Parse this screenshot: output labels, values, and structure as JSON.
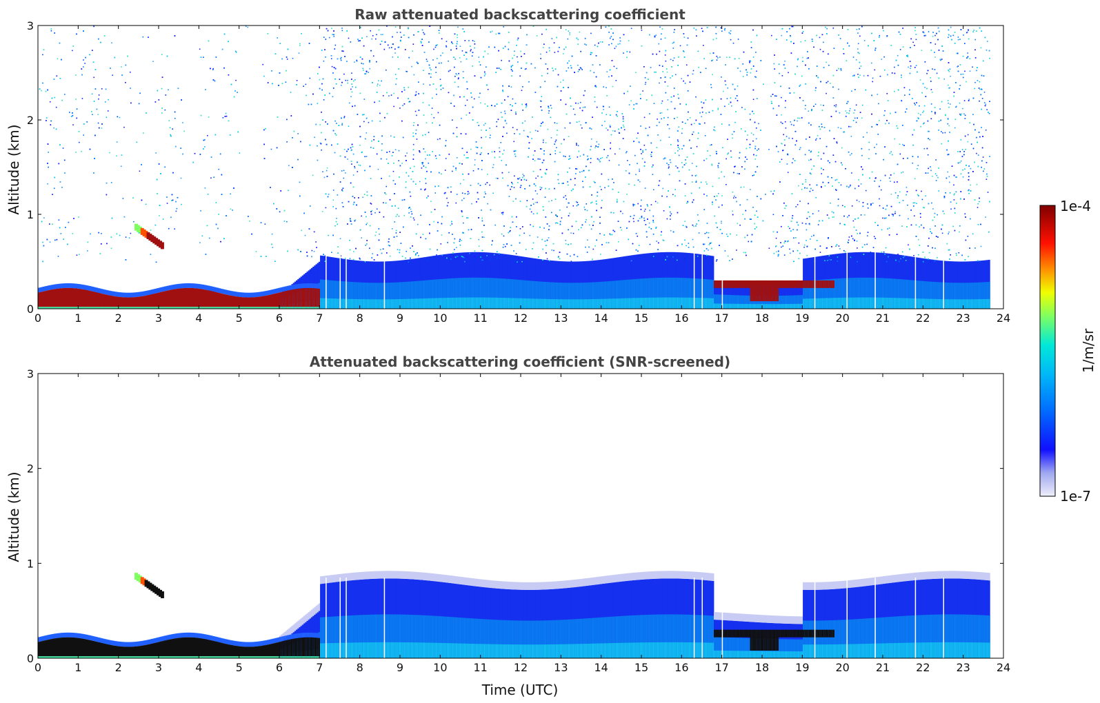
{
  "chart_data": [
    {
      "type": "heatmap",
      "title": "Raw attenuated backscattering coefficient",
      "ylabel": "Altitude (km)",
      "xlabel": "",
      "xlim": [
        0,
        24
      ],
      "ylim": [
        0,
        3
      ],
      "x_ticks": [
        "0",
        "1",
        "2",
        "3",
        "4",
        "5",
        "6",
        "7",
        "8",
        "9",
        "10",
        "11",
        "12",
        "13",
        "14",
        "15",
        "16",
        "17",
        "18",
        "19",
        "20",
        "21",
        "22",
        "23",
        "24"
      ],
      "y_ticks": [
        "0",
        "1",
        "2",
        "3"
      ],
      "data_end_time": 23.65,
      "noise_present": true,
      "features": [
        {
          "name": "low-boundary-layer",
          "t_start": 0,
          "t_end": 7.0,
          "alt_top_km": 0.2,
          "level": "high"
        },
        {
          "name": "cloud-lobe",
          "t_start": 2.4,
          "t_end": 3.1,
          "alt_km": 0.8,
          "level": "high"
        },
        {
          "name": "aerosol-layer",
          "t_start": 7.0,
          "t_end": 23.65,
          "alt_top_km": 0.5,
          "level": "medium"
        },
        {
          "name": "low-cloud",
          "t_start": 16.8,
          "t_end": 19.8,
          "alt_km": 0.25,
          "level": "high"
        }
      ]
    },
    {
      "type": "heatmap",
      "title": "Attenuated backscattering coefficient (SNR-screened)",
      "ylabel": "Altitude (km)",
      "xlabel": "Time (UTC)",
      "xlim": [
        0,
        24
      ],
      "ylim": [
        0,
        3
      ],
      "x_ticks": [
        "0",
        "1",
        "2",
        "3",
        "4",
        "5",
        "6",
        "7",
        "8",
        "9",
        "10",
        "11",
        "12",
        "13",
        "14",
        "15",
        "16",
        "17",
        "18",
        "19",
        "20",
        "21",
        "22",
        "23",
        "24"
      ],
      "y_ticks": [
        "0",
        "1",
        "2",
        "3"
      ],
      "data_end_time": 23.65,
      "noise_present": false,
      "features": [
        {
          "name": "low-boundary-layer",
          "t_start": 0,
          "t_end": 7.0,
          "alt_top_km": 0.2,
          "level": "saturated"
        },
        {
          "name": "cloud-lobe",
          "t_start": 2.4,
          "t_end": 3.1,
          "alt_km": 0.8,
          "level": "saturated"
        },
        {
          "name": "aerosol-layer",
          "t_start": 7.0,
          "t_end": 23.65,
          "alt_top_km": 0.8,
          "level": "medium"
        },
        {
          "name": "low-cloud",
          "t_start": 16.8,
          "t_end": 19.8,
          "alt_km": 0.25,
          "level": "saturated"
        }
      ]
    }
  ],
  "colorbar": {
    "label": "1/m/sr",
    "max_label": "1e-4",
    "min_label": "1e-7",
    "colormap": [
      "#e8e8f8",
      "#aab0f0",
      "#0000ff",
      "#0088ff",
      "#00e8e8",
      "#80ff80",
      "#ffff00",
      "#ff8000",
      "#ff0000",
      "#800000"
    ]
  }
}
